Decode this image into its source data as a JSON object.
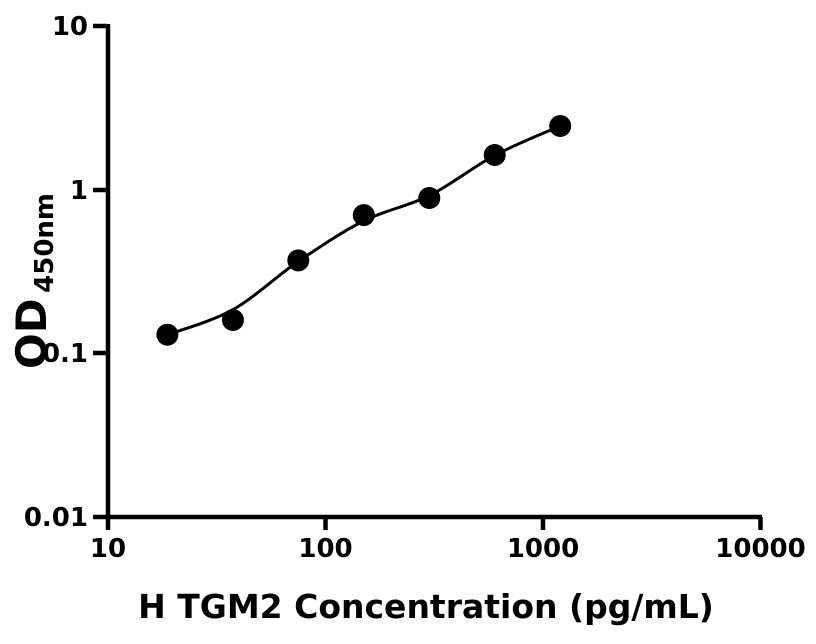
{
  "figure": {
    "background_color": "#ffffff",
    "foreground_color": "#000000"
  },
  "chart_data": {
    "type": "scatter",
    "title": "",
    "xlabel": "H TGM2 Concentration (pg/mL)",
    "ylabel_main": "OD",
    "ylabel_sub": "450nm",
    "x_scale": "log",
    "y_scale": "log",
    "xlim": [
      10,
      10000
    ],
    "ylim": [
      0.01,
      10
    ],
    "x_ticks": [
      10,
      100,
      1000,
      10000
    ],
    "x_tick_labels": [
      "10",
      "100",
      "1000",
      "10000"
    ],
    "y_ticks": [
      10,
      1,
      0.1,
      0.01
    ],
    "y_tick_labels": [
      "10",
      "1",
      "0.1",
      "0.01"
    ],
    "grid": false,
    "legend": "none",
    "series": [
      {
        "name": "standard-curve-points",
        "marker": "circle",
        "marker_color": "#000000",
        "x": [
          18.75,
          37.5,
          75,
          150,
          300,
          600,
          1200
        ],
        "y": [
          0.13,
          0.16,
          0.37,
          0.7,
          0.89,
          1.63,
          2.45
        ]
      }
    ],
    "fit_line": {
      "name": "fitted-standard-curve",
      "color": "#000000",
      "x": [
        18.75,
        37.5,
        75,
        150,
        300,
        600,
        1200
      ],
      "y": [
        0.13,
        0.185,
        0.365,
        0.645,
        0.92,
        1.62,
        2.45
      ]
    }
  }
}
